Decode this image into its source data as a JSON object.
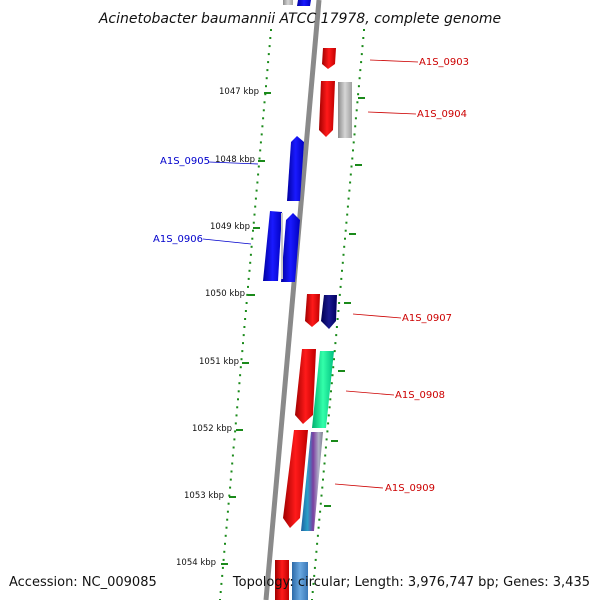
{
  "title": "Acinetobacter baumannii ATCC 17978, complete genome",
  "footer": {
    "accession": "Accession: NC_009085",
    "summary": "Topology: circular; Length: 3,976,747 bp; Genes: 3,435"
  },
  "scale": {
    "ticks": [
      "1047 kbp",
      "1048 kbp",
      "1049 kbp",
      "1050 kbp",
      "1051 kbp",
      "1052 kbp",
      "1053 kbp",
      "1054 kbp"
    ]
  },
  "gene_labels": {
    "forward": [
      "A1S_0905",
      "A1S_0906"
    ],
    "reverse": [
      "A1S_0903",
      "A1S_0904",
      "A1S_0907",
      "A1S_0908",
      "A1S_0909"
    ]
  },
  "colors": {
    "backbone": "#8a8a8a",
    "ticks": "#1a8a1a",
    "forward_genes": "#0000ff",
    "reverse_genes": "#ff0000",
    "forward_label": "#0000cc",
    "reverse_label": "#cc0000"
  }
}
